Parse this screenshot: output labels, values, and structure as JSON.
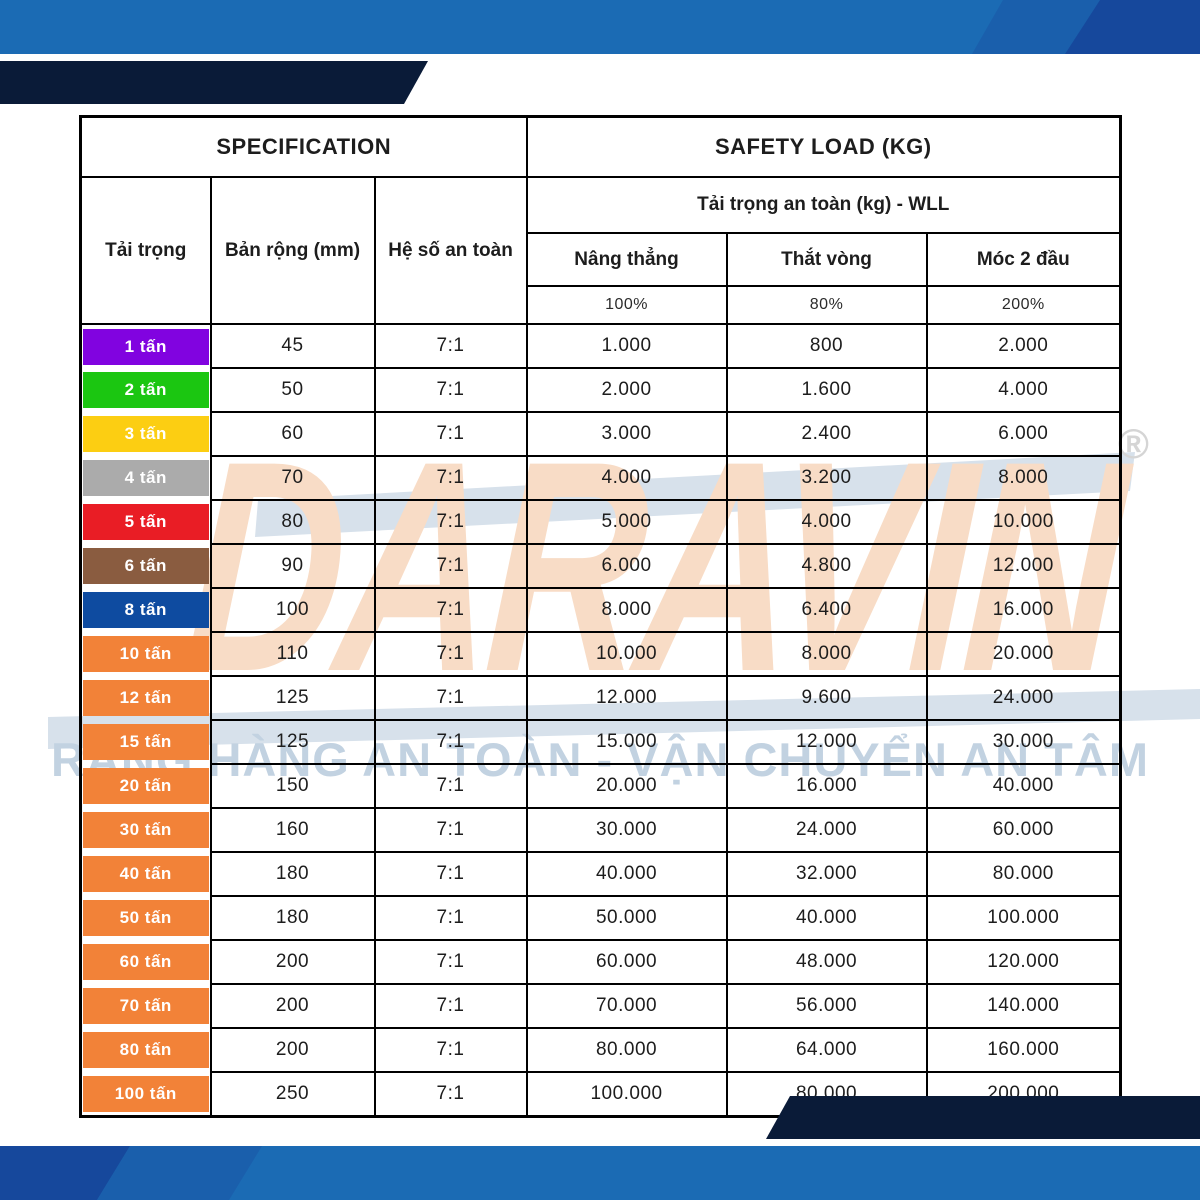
{
  "table": {
    "section_headers": {
      "specification": "SPECIFICATION",
      "safety_load": "SAFETY LOAD (KG)"
    },
    "columns": {
      "load": "Tải trọng",
      "band_width": "Bản rộng (mm)",
      "safety_factor": "Hệ số an toàn",
      "wll_title": "Tải trọng an toàn (kg) - WLL",
      "vertical": "Nâng thẳng",
      "choke": "Thắt vòng",
      "basket": "Móc 2 đầu",
      "vertical_pct": "100%",
      "choke_pct": "80%",
      "basket_pct": "200%"
    },
    "rows": [
      {
        "label": "1 tấn",
        "color": "#8103E0",
        "band_width": "45",
        "factor": "7:1",
        "vertical": "1.000",
        "choke": "800",
        "basket": "2.000"
      },
      {
        "label": "2 tấn",
        "color": "#1BC611",
        "band_width": "50",
        "factor": "7:1",
        "vertical": "2.000",
        "choke": "1.600",
        "basket": "4.000"
      },
      {
        "label": "3 tấn",
        "color": "#FCCE12",
        "band_width": "60",
        "factor": "7:1",
        "vertical": "3.000",
        "choke": "2.400",
        "basket": "6.000"
      },
      {
        "label": "4 tấn",
        "color": "#ABABAB",
        "band_width": "70",
        "factor": "7:1",
        "vertical": "4.000",
        "choke": "3.200",
        "basket": "8.000"
      },
      {
        "label": "5 tấn",
        "color": "#E91D25",
        "band_width": "80",
        "factor": "7:1",
        "vertical": "5.000",
        "choke": "4.000",
        "basket": "10.000"
      },
      {
        "label": "6 tấn",
        "color": "#8A5C40",
        "band_width": "90",
        "factor": "7:1",
        "vertical": "6.000",
        "choke": "4.800",
        "basket": "12.000"
      },
      {
        "label": "8 tấn",
        "color": "#0E4BA0",
        "band_width": "100",
        "factor": "7:1",
        "vertical": "8.000",
        "choke": "6.400",
        "basket": "16.000"
      },
      {
        "label": "10 tấn",
        "color": "#F28238",
        "band_width": "110",
        "factor": "7:1",
        "vertical": "10.000",
        "choke": "8.000",
        "basket": "20.000"
      },
      {
        "label": "12 tấn",
        "color": "#F28238",
        "band_width": "125",
        "factor": "7:1",
        "vertical": "12.000",
        "choke": "9.600",
        "basket": "24.000"
      },
      {
        "label": "15 tấn",
        "color": "#F28238",
        "band_width": "125",
        "factor": "7:1",
        "vertical": "15.000",
        "choke": "12.000",
        "basket": "30.000"
      },
      {
        "label": "20 tấn",
        "color": "#F28238",
        "band_width": "150",
        "factor": "7:1",
        "vertical": "20.000",
        "choke": "16.000",
        "basket": "40.000"
      },
      {
        "label": "30 tấn",
        "color": "#F28238",
        "band_width": "160",
        "factor": "7:1",
        "vertical": "30.000",
        "choke": "24.000",
        "basket": "60.000"
      },
      {
        "label": "40 tấn",
        "color": "#F28238",
        "band_width": "180",
        "factor": "7:1",
        "vertical": "40.000",
        "choke": "32.000",
        "basket": "80.000"
      },
      {
        "label": "50 tấn",
        "color": "#F28238",
        "band_width": "180",
        "factor": "7:1",
        "vertical": "50.000",
        "choke": "40.000",
        "basket": "100.000"
      },
      {
        "label": "60 tấn",
        "color": "#F28238",
        "band_width": "200",
        "factor": "7:1",
        "vertical": "60.000",
        "choke": "48.000",
        "basket": "120.000"
      },
      {
        "label": "70 tấn",
        "color": "#F28238",
        "band_width": "200",
        "factor": "7:1",
        "vertical": "70.000",
        "choke": "56.000",
        "basket": "140.000"
      },
      {
        "label": "80 tấn",
        "color": "#F28238",
        "band_width": "200",
        "factor": "7:1",
        "vertical": "80.000",
        "choke": "64.000",
        "basket": "160.000"
      },
      {
        "label": "100 tấn",
        "color": "#F28238",
        "band_width": "250",
        "factor": "7:1",
        "vertical": "100.000",
        "choke": "80.000",
        "basket": "200.000"
      }
    ]
  },
  "watermark": {
    "brand": "DARAVIN",
    "slogan": "RÀNG HÀNG AN TOÀN - VẬN CHUYỂN AN TÂM",
    "registered_mark": "®"
  },
  "colors": {
    "header_bg": "#D9D9D9",
    "main_blue": "#1B6BB4",
    "mid_blue": "#1A5FAC",
    "dark_blue": "#16489C",
    "navy": "#0A1B38",
    "band_blue": "#D7E1EB",
    "slogan_blue": "#C2D2E1",
    "logo_peach": "#F8DCC6",
    "orange_chip": "#F28238"
  }
}
